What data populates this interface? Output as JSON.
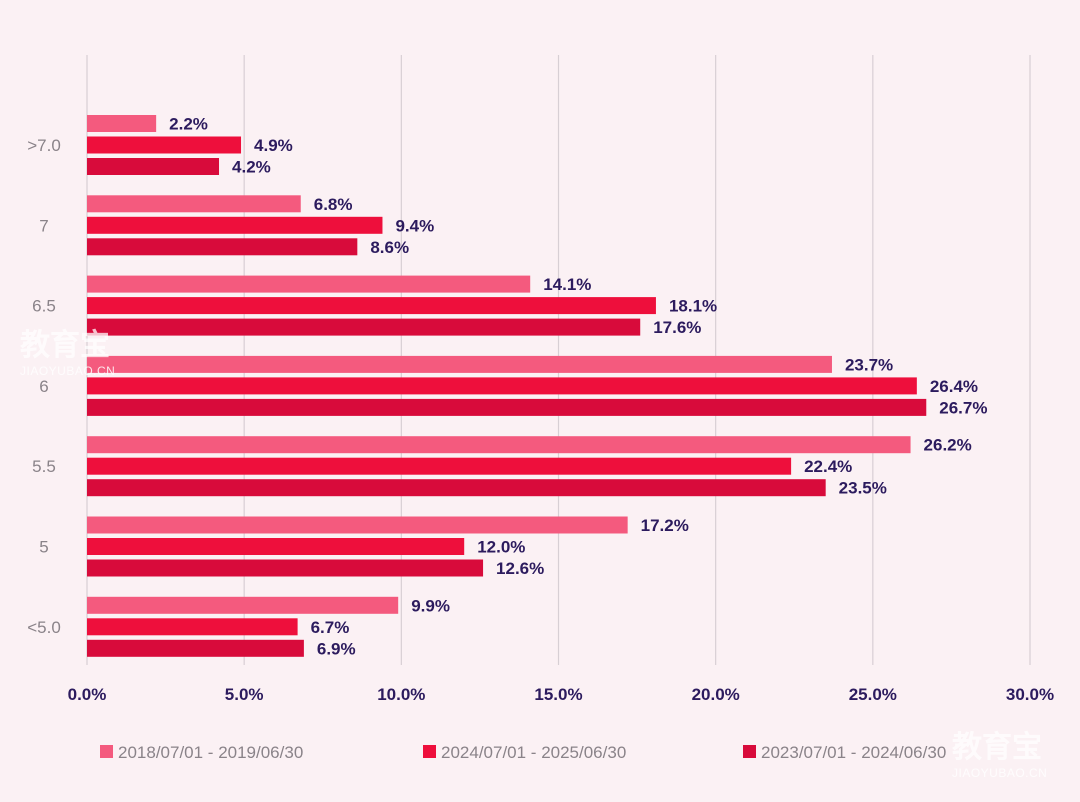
{
  "chart_data": {
    "type": "bar",
    "orientation": "horizontal",
    "title": "",
    "xlabel": "",
    "ylabel": "",
    "categories": [
      ">7.0",
      "7",
      "6.5",
      "6",
      "5.5",
      "5",
      "<5.0"
    ],
    "series": [
      {
        "name": "2018/07/01 - 2019/06/30",
        "color": "#f45a7e",
        "values": [
          2.2,
          6.8,
          14.1,
          23.7,
          26.2,
          17.2,
          9.9
        ]
      },
      {
        "name": "2024/07/01 - 2025/06/30",
        "color": "#ee0f3c",
        "values": [
          4.9,
          9.4,
          18.1,
          26.4,
          22.4,
          12.0,
          6.7
        ]
      },
      {
        "name": "2023/07/01 - 2024/06/30",
        "color": "#d80b3b",
        "values": [
          4.2,
          8.6,
          17.6,
          26.7,
          23.5,
          12.6,
          6.9
        ]
      }
    ],
    "value_labels": [
      [
        "2.2%",
        "6.8%",
        "14.1%",
        "23.7%",
        "26.2%",
        "17.2%",
        "9.9%"
      ],
      [
        "4.9%",
        "9.4%",
        "18.1%",
        "26.4%",
        "22.4%",
        "12.0%",
        "6.7%"
      ],
      [
        "4.2%",
        "8.6%",
        "17.6%",
        "26.7%",
        "23.5%",
        "12.6%",
        "6.9%"
      ]
    ],
    "xlim": [
      0,
      30
    ],
    "xticks": [
      0,
      5,
      10,
      15,
      20,
      25,
      30
    ],
    "xtick_labels": [
      "0.0%",
      "5.0%",
      "10.0%",
      "15.0%",
      "20.0%",
      "25.0%",
      "30.0%"
    ],
    "grid": true,
    "legend_position": "bottom"
  },
  "watermark": {
    "text": "教育宝",
    "subtext": "JIAOYUBAO.CN"
  }
}
